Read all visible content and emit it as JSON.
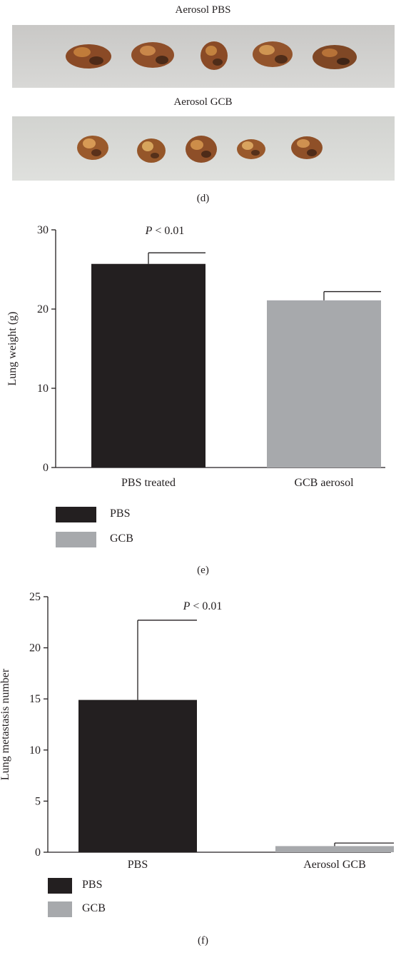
{
  "panel_d": {
    "title_top": "Aerosol PBS",
    "title_bottom": "Aerosol GCB",
    "label": "(d)",
    "photo_bg": "#cfcfcd",
    "specimen_color": "#8a4a26"
  },
  "panel_e": {
    "label": "(e)",
    "annotation": "P < 0.01",
    "annotation_italic": "P",
    "annotation_rest": " < 0.01",
    "legend": [
      {
        "name": "PBS",
        "color": "#231f20"
      },
      {
        "name": "GCB",
        "color": "#a7a9ac"
      }
    ]
  },
  "panel_f": {
    "label": "(f)",
    "annotation_italic": "P",
    "annotation_rest": " < 0.01",
    "legend": [
      {
        "name": "PBS",
        "color": "#231f20"
      },
      {
        "name": "GCB",
        "color": "#a7a9ac"
      }
    ]
  },
  "chart_data": [
    {
      "type": "bar",
      "categories": [
        "PBS treated",
        "GCB aerosol"
      ],
      "values": [
        25.7,
        21.1
      ],
      "errors": [
        1.4,
        1.1
      ],
      "colors": [
        "#231f20",
        "#a7a9ac"
      ],
      "ylabel": "Lung weight (g)",
      "ylim": [
        0,
        30
      ],
      "yticks": [
        "0",
        "10",
        "20",
        "30"
      ],
      "legend": [
        "PBS",
        "GCB"
      ],
      "annotation": "P < 0.01"
    },
    {
      "type": "bar",
      "categories": [
        "PBS",
        "Aerosol GCB"
      ],
      "values": [
        14.9,
        0.6
      ],
      "errors": [
        7.8,
        0.3
      ],
      "colors": [
        "#231f20",
        "#a7a9ac"
      ],
      "ylabel": "Lung metastasis number",
      "ylim": [
        0,
        25
      ],
      "yticks": [
        "0",
        "5",
        "10",
        "15",
        "20",
        "25"
      ],
      "legend": [
        "PBS",
        "GCB"
      ],
      "annotation": "P < 0.01"
    }
  ]
}
